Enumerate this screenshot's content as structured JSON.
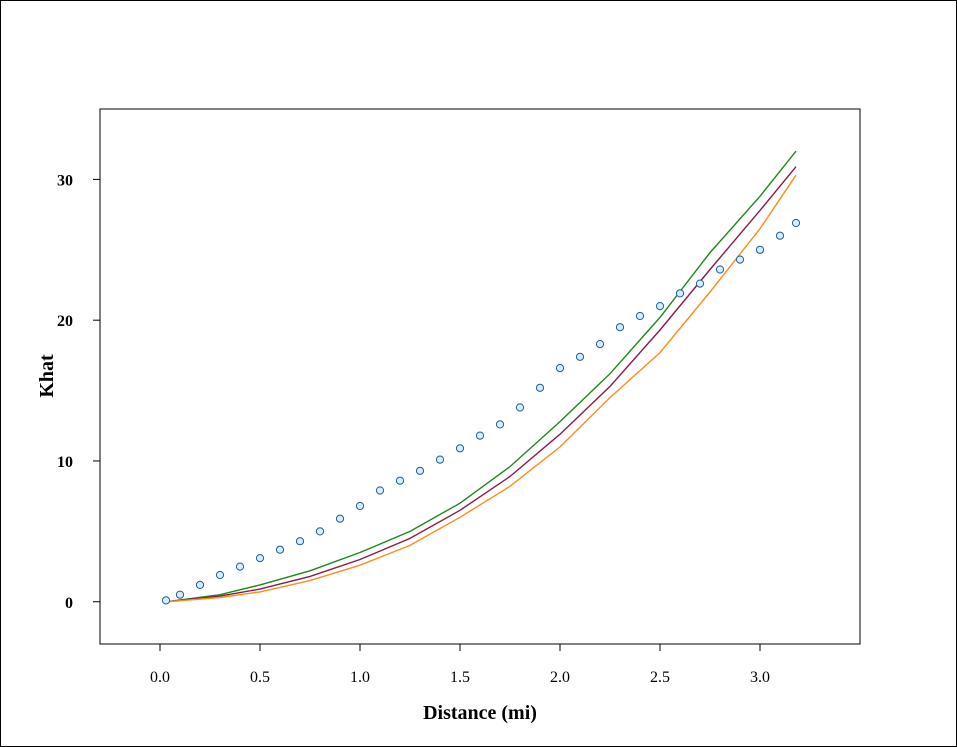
{
  "chart_data": {
    "type": "line",
    "title": "",
    "xlabel": "Distance (mi)",
    "ylabel": "Khat",
    "xlim": [
      -0.3,
      3.5
    ],
    "ylim": [
      -3,
      35
    ],
    "x_ticks": [
      0.0,
      0.5,
      1.0,
      1.5,
      2.0,
      2.5,
      3.0
    ],
    "x_tick_labels": [
      "0.0",
      "0.5",
      "1.0",
      "1.5",
      "2.0",
      "2.5",
      "3.0"
    ],
    "y_ticks": [
      0,
      10,
      20,
      30
    ],
    "y_tick_labels": [
      "0",
      "10",
      "20",
      "30"
    ],
    "grid": false,
    "legend": false,
    "series": [
      {
        "style": "line",
        "color": "#1a8a1a",
        "x": [
          0.03,
          0.3,
          0.5,
          0.75,
          1.0,
          1.25,
          1.5,
          1.75,
          2.0,
          2.25,
          2.5,
          2.75,
          3.0,
          3.18
        ],
        "y": [
          0.0,
          0.5,
          1.2,
          2.2,
          3.5,
          5.0,
          7.0,
          9.6,
          12.8,
          16.2,
          20.2,
          24.8,
          28.8,
          32.0
        ]
      },
      {
        "style": "line",
        "color": "#8b1a4a",
        "x": [
          0.03,
          0.3,
          0.5,
          0.75,
          1.0,
          1.25,
          1.5,
          1.75,
          2.0,
          2.25,
          2.5,
          2.75,
          3.0,
          3.18
        ],
        "y": [
          0.0,
          0.4,
          0.9,
          1.8,
          3.0,
          4.5,
          6.5,
          8.9,
          11.9,
          15.3,
          19.3,
          23.6,
          27.8,
          30.9
        ]
      },
      {
        "style": "line",
        "color": "#ff8c1a",
        "x": [
          0.03,
          0.3,
          0.5,
          0.75,
          1.0,
          1.25,
          1.5,
          1.75,
          2.0,
          2.25,
          2.5,
          2.75,
          3.0,
          3.18
        ],
        "y": [
          0.0,
          0.3,
          0.7,
          1.5,
          2.6,
          4.0,
          6.0,
          8.2,
          11.0,
          14.5,
          17.7,
          22.0,
          26.5,
          30.3
        ]
      },
      {
        "style": "points",
        "color": "#1a5f9e",
        "fill": "#d6ecff",
        "x": [
          0.03,
          0.1,
          0.2,
          0.3,
          0.4,
          0.5,
          0.6,
          0.7,
          0.8,
          0.9,
          1.0,
          1.1,
          1.2,
          1.3,
          1.4,
          1.5,
          1.6,
          1.7,
          1.8,
          1.9,
          2.0,
          2.1,
          2.2,
          2.3,
          2.4,
          2.5,
          2.6,
          2.7,
          2.8,
          2.9,
          3.0,
          3.1,
          3.18
        ],
        "y": [
          0.1,
          0.5,
          1.2,
          1.9,
          2.5,
          3.1,
          3.7,
          4.3,
          5.0,
          5.9,
          6.8,
          7.9,
          8.6,
          9.3,
          10.1,
          10.9,
          11.8,
          12.6,
          13.8,
          15.2,
          16.6,
          17.4,
          18.3,
          19.5,
          20.3,
          21.0,
          21.9,
          22.6,
          23.6,
          24.3,
          25.0,
          26.0,
          26.9
        ]
      }
    ]
  }
}
